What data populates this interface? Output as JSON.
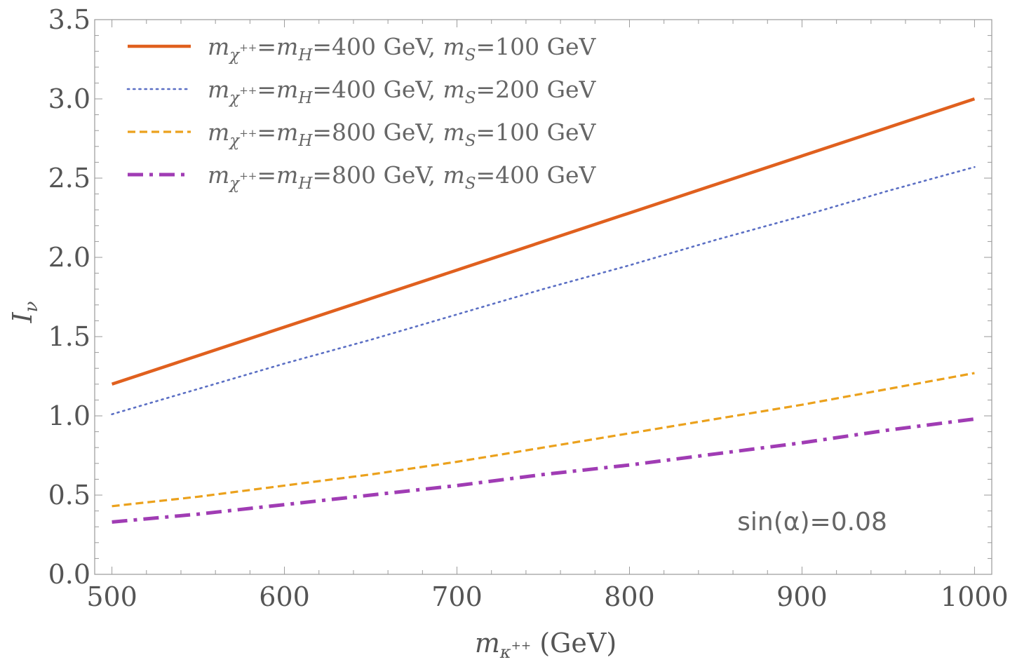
{
  "chart_data": {
    "type": "line",
    "title": "",
    "xlabel": "m_κ++ (GeV)",
    "ylabel": "I_ν",
    "xlim": [
      490,
      1010
    ],
    "ylim": [
      0,
      3.5
    ],
    "x_ticks": [
      "500",
      "600",
      "700",
      "800",
      "900",
      "1000"
    ],
    "y_ticks": [
      "0.0",
      "0.5",
      "1.0",
      "1.5",
      "2.0",
      "2.5",
      "3.0",
      "3.5"
    ],
    "legend_position": "top-left",
    "annotation": "sin(α)=0.08",
    "x": [
      500,
      550,
      600,
      650,
      700,
      750,
      800,
      850,
      900,
      950,
      1000
    ],
    "series": [
      {
        "name": "m_χ++=m_H=400 GeV, m_S=100 GeV",
        "label_parts": {
          "a": "400 GeV, ",
          "b": "100 GeV"
        },
        "style": "solid",
        "color": "#e0601e",
        "values": [
          1.2,
          1.38,
          1.56,
          1.74,
          1.92,
          2.1,
          2.28,
          2.46,
          2.64,
          2.82,
          3.0
        ]
      },
      {
        "name": "m_χ++=m_H=400 GeV, m_S=200 GeV",
        "label_parts": {
          "a": "400 GeV, ",
          "b": "200 GeV"
        },
        "style": "dotted",
        "color": "#5b6fc4",
        "values": [
          1.01,
          1.17,
          1.33,
          1.48,
          1.64,
          1.8,
          1.95,
          2.11,
          2.26,
          2.42,
          2.57
        ]
      },
      {
        "name": "m_χ++=m_H=800 GeV, m_S=100 GeV",
        "label_parts": {
          "a": "800 GeV, ",
          "b": "100 GeV"
        },
        "style": "dashed",
        "color": "#eba11c",
        "values": [
          0.43,
          0.49,
          0.56,
          0.63,
          0.71,
          0.8,
          0.89,
          0.98,
          1.07,
          1.17,
          1.27
        ]
      },
      {
        "name": "m_χ++=m_H=800 GeV, m_S=400 GeV",
        "label_parts": {
          "a": "800 GeV, ",
          "b": "400 GeV"
        },
        "style": "dashdot",
        "color": "#a03cb4",
        "values": [
          0.33,
          0.38,
          0.44,
          0.5,
          0.56,
          0.63,
          0.69,
          0.76,
          0.83,
          0.91,
          0.98
        ]
      }
    ]
  }
}
